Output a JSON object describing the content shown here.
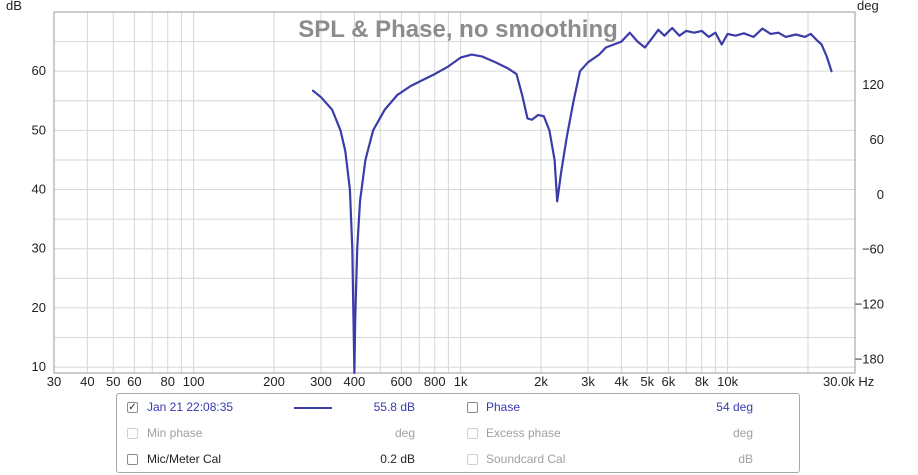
{
  "chart_data": {
    "type": "line",
    "title": "SPL & Phase, no smoothing",
    "left_axis_unit": "dB",
    "right_axis_unit": "deg",
    "x_unit": "Hz",
    "x_scale": "log",
    "xlim": [
      30,
      30000
    ],
    "ylim": [
      9,
      70
    ],
    "y2lim": [
      -195,
      200
    ],
    "grid": true,
    "x_ticks": [
      {
        "value": 30,
        "label": "30"
      },
      {
        "value": 40,
        "label": "40"
      },
      {
        "value": 50,
        "label": "50"
      },
      {
        "value": 60,
        "label": "60"
      },
      {
        "value": 80,
        "label": "80"
      },
      {
        "value": 100,
        "label": "100"
      },
      {
        "value": 200,
        "label": "200"
      },
      {
        "value": 300,
        "label": "300"
      },
      {
        "value": 400,
        "label": "400"
      },
      {
        "value": 600,
        "label": "600"
      },
      {
        "value": 800,
        "label": "800"
      },
      {
        "value": 1000,
        "label": "1k"
      },
      {
        "value": 2000,
        "label": "2k"
      },
      {
        "value": 3000,
        "label": "3k"
      },
      {
        "value": 4000,
        "label": "4k"
      },
      {
        "value": 5000,
        "label": "5k"
      },
      {
        "value": 6000,
        "label": "6k"
      },
      {
        "value": 8000,
        "label": "8k"
      },
      {
        "value": 10000,
        "label": "10k"
      },
      {
        "value": 30000,
        "label": "30.0k Hz"
      }
    ],
    "y_ticks": [
      10,
      20,
      30,
      40,
      50,
      60
    ],
    "y2_ticks": [
      -180,
      -120,
      -60,
      0,
      60,
      120
    ],
    "series": [
      {
        "axis": "left",
        "color": "#3c3ca8",
        "points": [
          [
            280,
            56.7
          ],
          [
            300,
            55.6
          ],
          [
            330,
            53.5
          ],
          [
            355,
            50
          ],
          [
            370,
            46.5
          ],
          [
            385,
            40
          ],
          [
            393,
            30
          ],
          [
            398,
            15
          ],
          [
            400,
            8
          ],
          [
            403,
            18
          ],
          [
            410,
            30
          ],
          [
            420,
            38
          ],
          [
            440,
            45
          ],
          [
            470,
            50
          ],
          [
            520,
            53.5
          ],
          [
            580,
            56
          ],
          [
            650,
            57.5
          ],
          [
            720,
            58.5
          ],
          [
            800,
            59.5
          ],
          [
            900,
            60.8
          ],
          [
            1000,
            62.3
          ],
          [
            1100,
            62.8
          ],
          [
            1200,
            62.5
          ],
          [
            1350,
            61.5
          ],
          [
            1500,
            60.5
          ],
          [
            1620,
            59.5
          ],
          [
            1700,
            56
          ],
          [
            1780,
            52
          ],
          [
            1850,
            51.8
          ],
          [
            1950,
            52.6
          ],
          [
            2050,
            52.4
          ],
          [
            2150,
            50
          ],
          [
            2250,
            45
          ],
          [
            2300,
            38
          ],
          [
            2380,
            43
          ],
          [
            2500,
            49
          ],
          [
            2650,
            55
          ],
          [
            2800,
            60
          ],
          [
            3000,
            61.5
          ],
          [
            3300,
            62.8
          ],
          [
            3500,
            64
          ],
          [
            4000,
            65
          ],
          [
            4300,
            66.5
          ],
          [
            4600,
            65
          ],
          [
            4900,
            64
          ],
          [
            5200,
            65.5
          ],
          [
            5500,
            67
          ],
          [
            5800,
            66
          ],
          [
            6200,
            67.3
          ],
          [
            6600,
            66
          ],
          [
            7000,
            66.8
          ],
          [
            7500,
            66.5
          ],
          [
            8000,
            66.8
          ],
          [
            8500,
            65.8
          ],
          [
            9000,
            66.5
          ],
          [
            9500,
            64.5
          ],
          [
            10000,
            66.3
          ],
          [
            10700,
            66
          ],
          [
            11500,
            66.4
          ],
          [
            12500,
            65.8
          ],
          [
            13500,
            67.2
          ],
          [
            14500,
            66.3
          ],
          [
            15500,
            66.5
          ],
          [
            16500,
            65.8
          ],
          [
            18000,
            66.2
          ],
          [
            19500,
            65.8
          ],
          [
            20500,
            66.3
          ],
          [
            21500,
            65.3
          ],
          [
            22500,
            64.5
          ],
          [
            23500,
            62.5
          ],
          [
            24500,
            60
          ]
        ]
      }
    ]
  },
  "legend": {
    "rows": [
      {
        "left": {
          "checked": true,
          "enabled": true,
          "label": "Jan 21 22:08:35",
          "value": "55.8 dB",
          "swatch": true
        },
        "right": {
          "checked": false,
          "enabled": true,
          "label": "Phase",
          "value": "54 deg"
        }
      },
      {
        "left": {
          "checked": false,
          "enabled": false,
          "label": "Min phase",
          "value": "deg"
        },
        "right": {
          "checked": false,
          "enabled": false,
          "label": "Excess phase",
          "value": "deg"
        }
      },
      {
        "left": {
          "checked": false,
          "enabled": true,
          "label": "Mic/Meter Cal",
          "value": "0.2 dB"
        },
        "right": {
          "checked": false,
          "enabled": false,
          "label": "Soundcard Cal",
          "value": "dB"
        }
      }
    ],
    "check_glyph": "✓"
  }
}
